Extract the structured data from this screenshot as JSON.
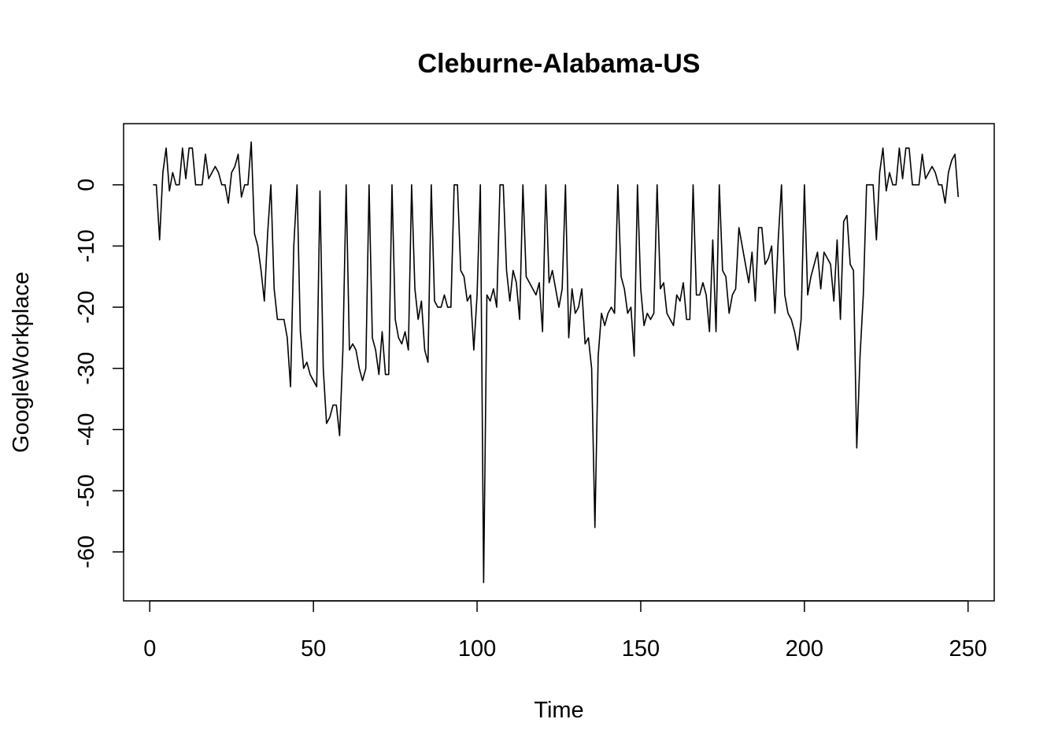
{
  "chart_data": {
    "type": "line",
    "title": "Cleburne-Alabama-US",
    "xlabel": "Time",
    "ylabel": "GoogleWorkplace",
    "xlim": [
      -8,
      258
    ],
    "ylim": [
      -68,
      10
    ],
    "x_ticks": [
      0,
      50,
      100,
      150,
      200,
      250
    ],
    "y_ticks": [
      0,
      -10,
      -20,
      -30,
      -40,
      -50,
      -60
    ],
    "grid": false,
    "legend": "none",
    "line_color": "#000000",
    "series": [
      {
        "x_start": 1,
        "values": [
          0,
          0,
          -9,
          2,
          6,
          -1,
          2,
          0,
          0,
          6,
          1,
          6,
          6,
          0,
          0,
          0,
          5,
          1,
          2,
          3,
          2,
          0,
          0,
          -3,
          2,
          3,
          5,
          -2,
          0,
          0,
          7,
          -8,
          -10,
          -14,
          -19,
          -8,
          0,
          -17,
          -22,
          -22,
          -22,
          -25,
          -33,
          -10,
          0,
          -24,
          -30,
          -29,
          -31,
          -32,
          -33,
          -1,
          -30,
          -39,
          -38,
          -36,
          -36,
          -41,
          -27,
          0,
          -27,
          -26,
          -27,
          -30,
          -32,
          -30,
          0,
          -25,
          -27,
          -31,
          -24,
          -31,
          -31,
          0,
          -22,
          -25,
          -26,
          -24,
          -27,
          0,
          -17,
          -22,
          -19,
          -27,
          -29,
          0,
          -19,
          -20,
          -20,
          -18,
          -20,
          -20,
          0,
          0,
          -14,
          -15,
          -19,
          -18,
          -27,
          -18,
          0,
          -65,
          -18,
          -19,
          -17,
          -20,
          0,
          0,
          -14,
          -19,
          -14,
          -16,
          -22,
          0,
          -15,
          -16,
          -17,
          -18,
          -16,
          -24,
          0,
          -16,
          -14,
          -17,
          -20,
          -17,
          0,
          -25,
          -17,
          -21,
          -20,
          -17,
          -26,
          -25,
          -30,
          -56,
          -28,
          -21,
          -23,
          -21,
          -20,
          -21,
          0,
          -15,
          -17,
          -21,
          -20,
          -28,
          0,
          -17,
          -23,
          -21,
          -22,
          -21,
          0,
          -17,
          -16,
          -21,
          -22,
          -23,
          -18,
          -19,
          -16,
          -22,
          -22,
          0,
          -18,
          -18,
          -16,
          -18,
          -24,
          -9,
          -24,
          0,
          -14,
          -15,
          -21,
          -18,
          -17,
          -7,
          -10,
          -13,
          -16,
          -11,
          -19,
          -7,
          -7,
          -13,
          -12,
          -10,
          -21,
          -9,
          0,
          -18,
          -21,
          -22,
          -24,
          -27,
          -22,
          0,
          -18,
          -15,
          -13,
          -11,
          -17,
          -11,
          -12,
          -13,
          -19,
          -9,
          -22,
          -6,
          -5,
          -13,
          -14,
          -43,
          -28,
          -18,
          0,
          0,
          0,
          -9,
          2,
          6,
          -1,
          2,
          0,
          0,
          6,
          1,
          6,
          6,
          0,
          0,
          0,
          5,
          1,
          2,
          3,
          2,
          0,
          0,
          -3,
          2,
          4,
          5,
          -2
        ]
      }
    ]
  }
}
